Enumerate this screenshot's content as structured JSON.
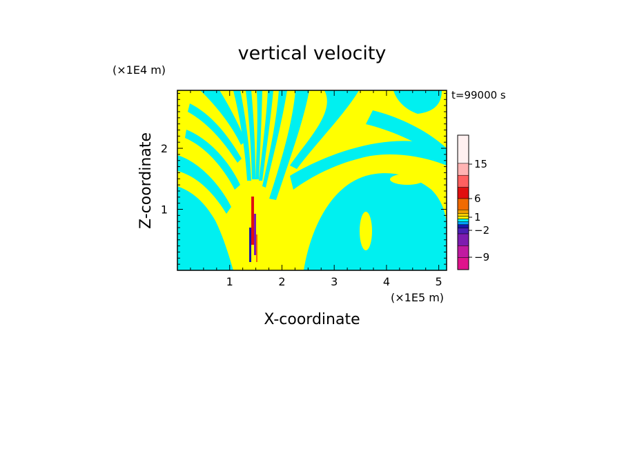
{
  "chart_data": {
    "type": "heatmap",
    "title": "vertical velocity",
    "xlabel": "X-coordinate",
    "ylabel": "Z-coordinate",
    "x_unit": "(×1E5 m)",
    "y_unit": "(×1E4 m)",
    "time_label": "t=99000 s",
    "xlim": [
      0,
      5.15
    ],
    "ylim": [
      0,
      2.95
    ],
    "x_ticks": [
      "1",
      "2",
      "3",
      "4",
      "5"
    ],
    "y_ticks": [
      "1",
      "2"
    ],
    "colorbar": {
      "ticks": [
        "15",
        "6",
        "1",
        "−2",
        "−9"
      ],
      "colors": [
        "#e0138c",
        "#c01aa0",
        "#7d1cb0",
        "#4b1fb4",
        "#1717a8",
        "#00a0ff",
        "#00f0f0",
        "#f0f000",
        "#ffd000",
        "#f0a000",
        "#f06a00",
        "#e01010",
        "#ff6060",
        "#ffb3b3",
        "#fff0f0"
      ]
    },
    "field": {
      "background": "#ffff00",
      "negative_color": "#00f0f0",
      "jet_colors": [
        "#e01010",
        "#7d1cb0",
        "#1717a8",
        "#f06a00"
      ]
    }
  }
}
